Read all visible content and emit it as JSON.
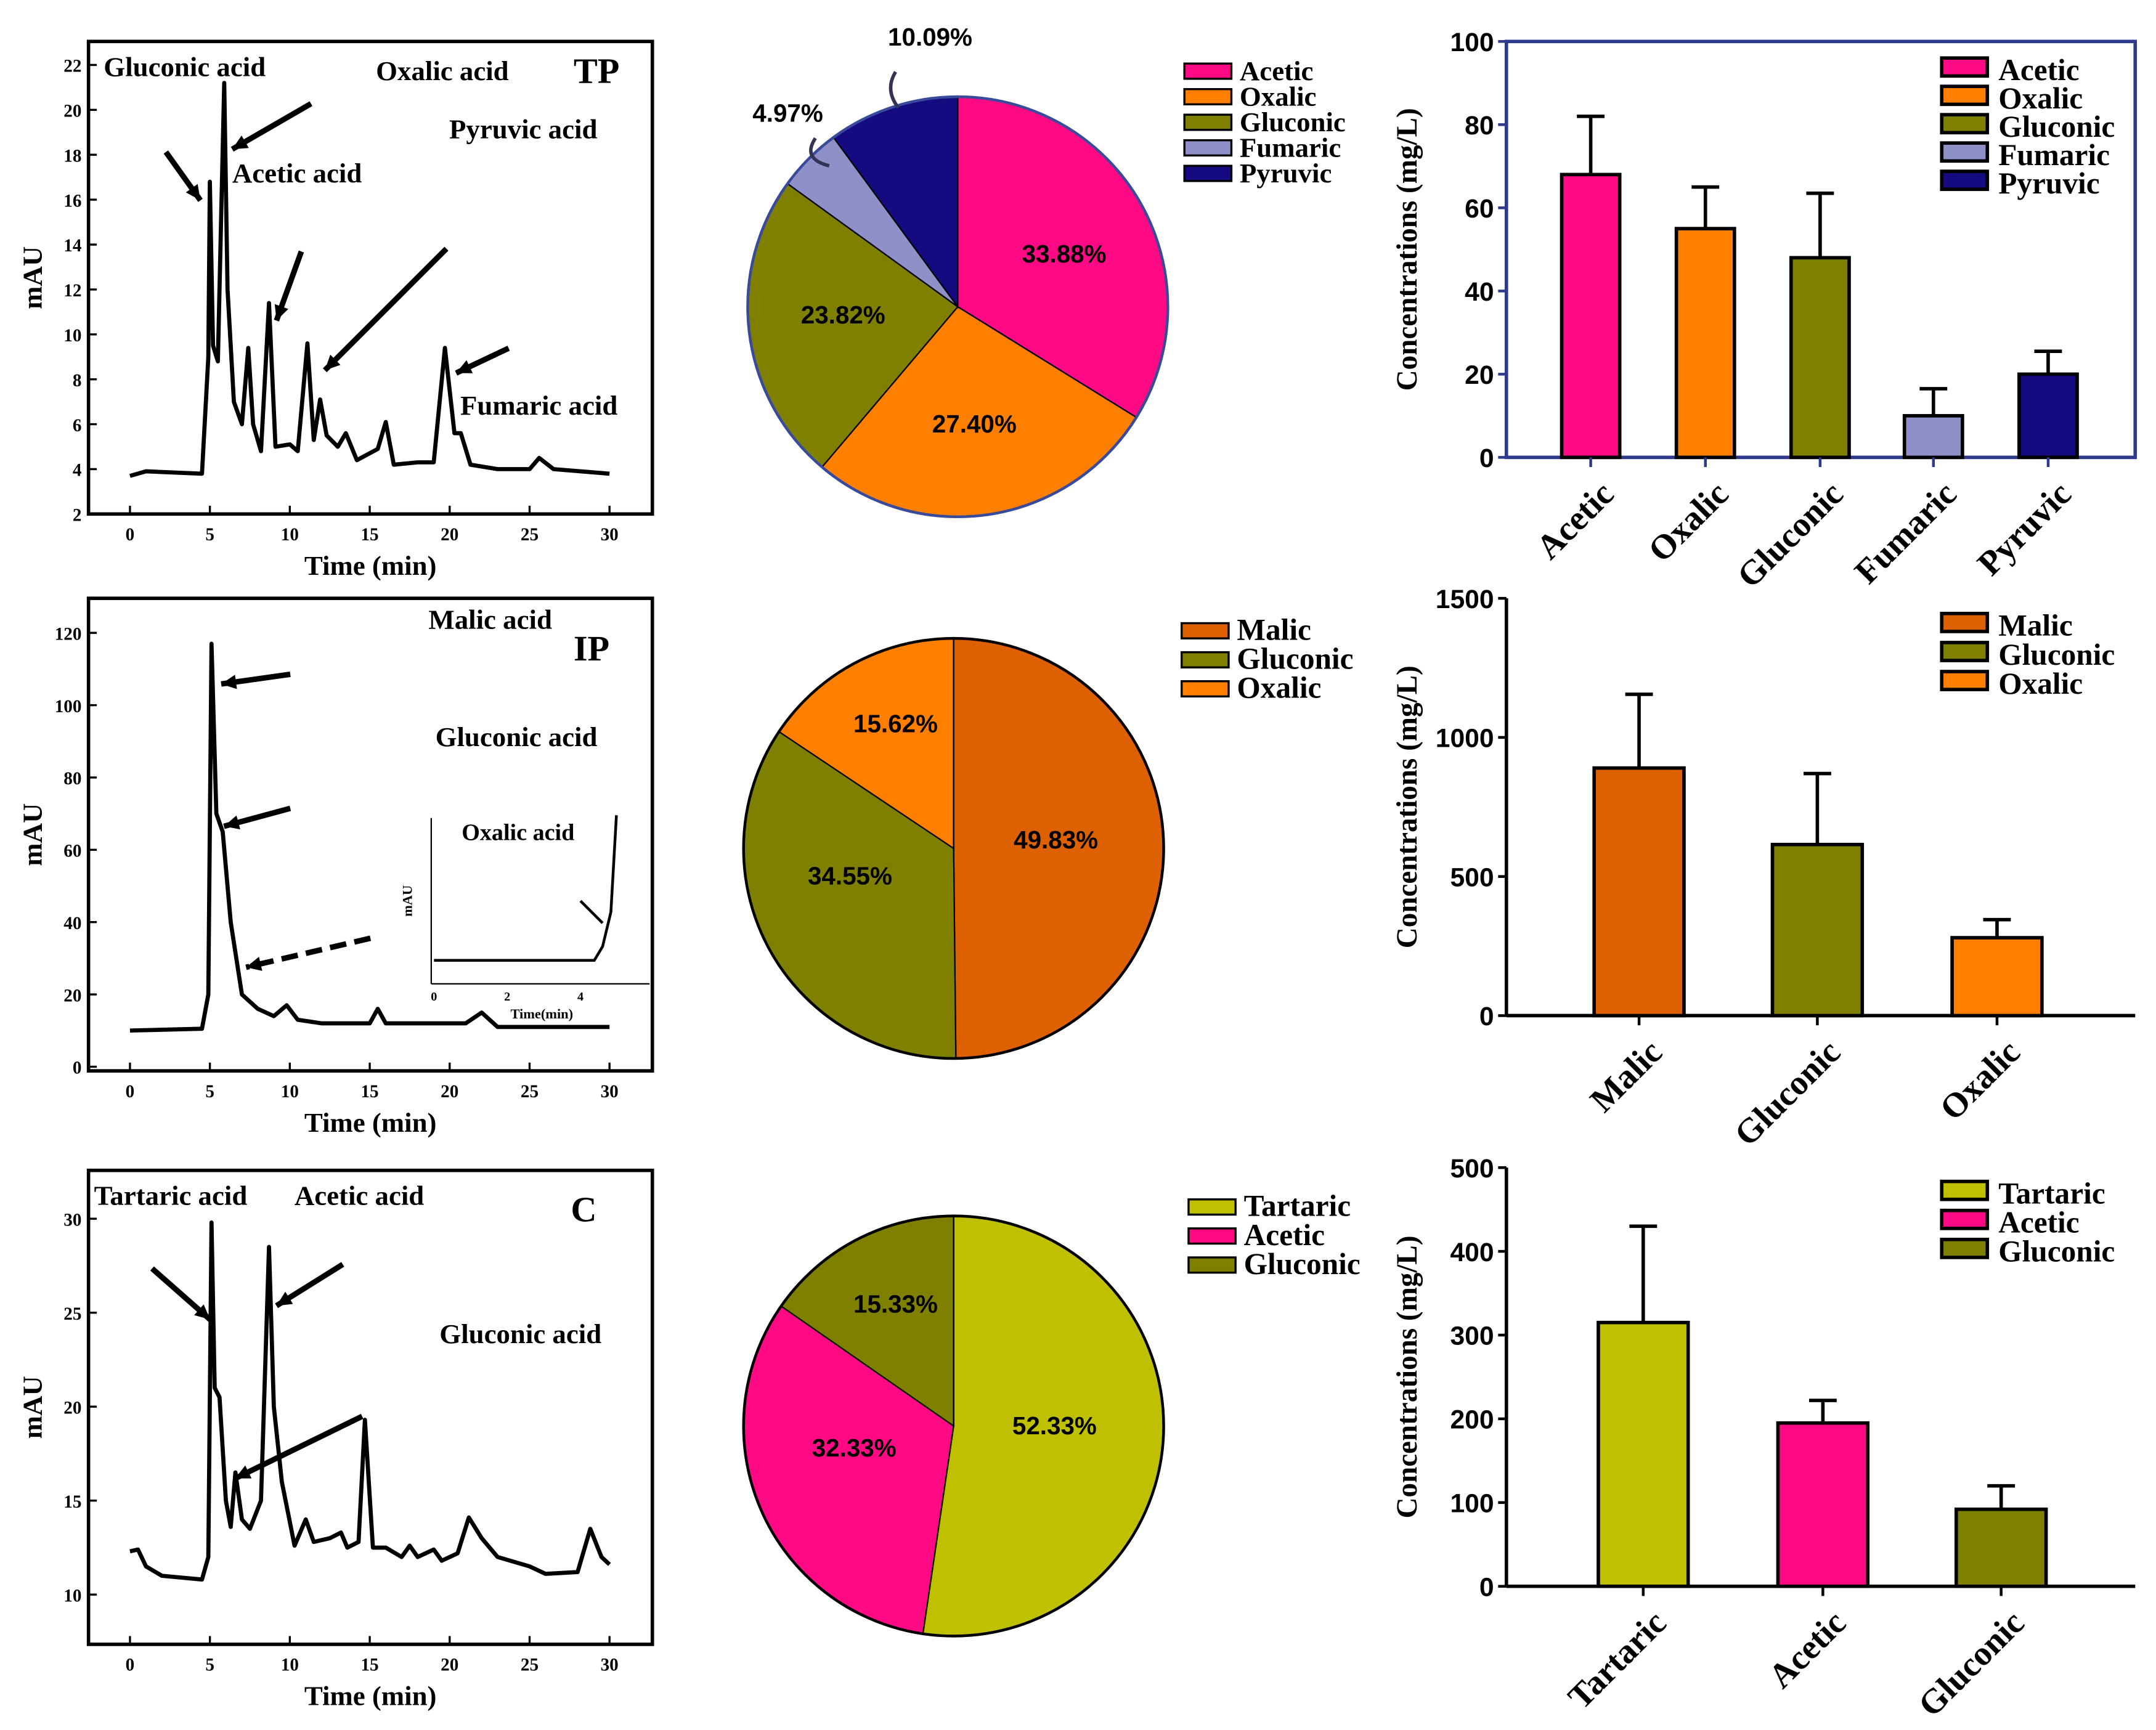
{
  "chart_data": [
    {
      "type": "line",
      "panel": "TP chromatogram",
      "tag": "TP",
      "xlabel": "Time (min)",
      "ylabel": "mAU",
      "xlim": [
        0,
        30
      ],
      "ylim": [
        2,
        22
      ],
      "xticks": [
        0,
        5,
        10,
        15,
        20,
        25,
        30
      ],
      "yticks": [
        2,
        4,
        6,
        8,
        10,
        12,
        14,
        16,
        18,
        20,
        22
      ],
      "annotations": [
        "Gluconic acid",
        "Oxalic acid",
        "Acetic acid",
        "Pyruvic acid",
        "Fumaric acid"
      ],
      "points": [
        [
          0,
          3.7
        ],
        [
          1,
          3.9
        ],
        [
          4.5,
          3.8
        ],
        [
          4.9,
          9
        ],
        [
          5.0,
          16.8
        ],
        [
          5.2,
          9.5
        ],
        [
          5.5,
          8.8
        ],
        [
          5.9,
          21.2
        ],
        [
          6.1,
          12
        ],
        [
          6.5,
          7
        ],
        [
          7,
          6
        ],
        [
          7.4,
          9.4
        ],
        [
          7.7,
          6
        ],
        [
          8.2,
          4.8
        ],
        [
          8.7,
          11.4
        ],
        [
          9.1,
          5
        ],
        [
          10,
          5.1
        ],
        [
          10.5,
          4.8
        ],
        [
          11.1,
          9.6
        ],
        [
          11.5,
          5.3
        ],
        [
          11.9,
          7.1
        ],
        [
          12.3,
          5.5
        ],
        [
          13,
          5
        ],
        [
          13.5,
          5.6
        ],
        [
          14.2,
          4.4
        ],
        [
          15.5,
          4.9
        ],
        [
          16,
          6.1
        ],
        [
          16.5,
          4.2
        ],
        [
          18,
          4.3
        ],
        [
          19,
          4.3
        ],
        [
          19.7,
          9.4
        ],
        [
          20.3,
          5.6
        ],
        [
          20.7,
          5.6
        ],
        [
          21.3,
          4.2
        ],
        [
          23,
          4
        ],
        [
          25,
          4
        ],
        [
          25.6,
          4.5
        ],
        [
          26.5,
          4
        ],
        [
          30,
          3.8
        ]
      ]
    },
    {
      "type": "pie",
      "panel": "TP composition",
      "labels": [
        "Acetic",
        "Oxalic",
        "Gluconic",
        "Fumaric",
        "Pyruvic"
      ],
      "values": [
        33.88,
        27.4,
        23.82,
        4.97,
        10.09
      ],
      "value_labels": [
        "33.88%",
        "27.40%",
        "23.82%",
        "4.97%",
        "10.09%"
      ],
      "colors": [
        "#ff0a84",
        "#ff7f00",
        "#808000",
        "#9090c8",
        "#150a80"
      ],
      "legend": "right"
    },
    {
      "type": "bar",
      "panel": "TP concentrations",
      "categories": [
        "Acetic",
        "Oxalic",
        "Gluconic",
        "Fumaric",
        "Pyruvic"
      ],
      "values": [
        68,
        55,
        48,
        10,
        20
      ],
      "errors": [
        14,
        10,
        15.5,
        6.5,
        5.5
      ],
      "colors": [
        "#ff0a84",
        "#ff7f00",
        "#808000",
        "#9090c8",
        "#150a80"
      ],
      "ylabel": "Concentrations (mg/L)",
      "ylim": [
        0,
        100
      ],
      "yticks": [
        0,
        20,
        40,
        60,
        80,
        100
      ],
      "legend": "top-right",
      "frame": true
    },
    {
      "type": "line",
      "panel": "IP chromatogram",
      "tag": "IP",
      "xlabel": "Time (min)",
      "ylabel": "mAU",
      "xlim": [
        0,
        30
      ],
      "ylim": [
        0,
        120
      ],
      "xticks": [
        0,
        5,
        10,
        15,
        20,
        25,
        30
      ],
      "yticks": [
        0,
        20,
        40,
        60,
        80,
        100,
        120
      ],
      "annotations": [
        "Malic acid",
        "Gluconic acid"
      ],
      "inset": {
        "title": "Oxalic acid",
        "xlabel": "Time(min)",
        "ylabel": "mAU",
        "xticks": [
          "0",
          "2",
          "4"
        ]
      },
      "points": [
        [
          0,
          10
        ],
        [
          4.5,
          10.5
        ],
        [
          4.9,
          20
        ],
        [
          5.1,
          117
        ],
        [
          5.4,
          70
        ],
        [
          5.8,
          65
        ],
        [
          6.3,
          40
        ],
        [
          7,
          20
        ],
        [
          8,
          16
        ],
        [
          9,
          14
        ],
        [
          9.8,
          17
        ],
        [
          10.5,
          13
        ],
        [
          12,
          12
        ],
        [
          14,
          12
        ],
        [
          15,
          12
        ],
        [
          15.5,
          16
        ],
        [
          16,
          12
        ],
        [
          21,
          12
        ],
        [
          22,
          15
        ],
        [
          23,
          11
        ],
        [
          30,
          11
        ]
      ]
    },
    {
      "type": "pie",
      "panel": "IP composition",
      "labels": [
        "Malic",
        "Gluconic",
        "Oxalic"
      ],
      "values": [
        49.83,
        34.55,
        15.62
      ],
      "value_labels": [
        "49.83%",
        "34.55%",
        "15.62%"
      ],
      "colors": [
        "#dd6100",
        "#808000",
        "#ff7f00"
      ],
      "legend": "right"
    },
    {
      "type": "bar",
      "panel": "IP concentrations",
      "categories": [
        "Malic",
        "Gluconic",
        "Oxalic"
      ],
      "values": [
        890,
        615,
        280
      ],
      "errors": [
        265,
        255,
        65
      ],
      "colors": [
        "#dd6100",
        "#808000",
        "#ff7f00"
      ],
      "ylabel": "Concentrations (mg/L)",
      "ylim": [
        0,
        1500
      ],
      "yticks": [
        0,
        500,
        1000,
        1500
      ],
      "legend": "top-right",
      "frame": false
    },
    {
      "type": "line",
      "panel": "C chromatogram",
      "tag": "C",
      "xlabel": "Time (min)",
      "ylabel": "mAU",
      "xlim": [
        0,
        30
      ],
      "ylim": [
        10,
        30
      ],
      "xticks": [
        0,
        5,
        10,
        15,
        20,
        25,
        30
      ],
      "yticks": [
        10,
        15,
        20,
        25,
        30
      ],
      "annotations": [
        "Tartaric acid",
        "Acetic acid",
        "Gluconic acid"
      ],
      "points": [
        [
          0,
          12.3
        ],
        [
          0.5,
          12.4
        ],
        [
          1,
          11.5
        ],
        [
          2,
          11
        ],
        [
          4.5,
          10.8
        ],
        [
          4.9,
          12
        ],
        [
          5.1,
          29.8
        ],
        [
          5.3,
          21
        ],
        [
          5.6,
          20.5
        ],
        [
          6,
          15
        ],
        [
          6.3,
          13.6
        ],
        [
          6.6,
          16.5
        ],
        [
          7,
          14
        ],
        [
          7.5,
          13.5
        ],
        [
          8.2,
          15
        ],
        [
          8.7,
          28.5
        ],
        [
          9,
          20
        ],
        [
          9.5,
          16
        ],
        [
          10.3,
          12.6
        ],
        [
          11,
          14
        ],
        [
          11.5,
          12.8
        ],
        [
          12.5,
          13
        ],
        [
          13.2,
          13.3
        ],
        [
          13.6,
          12.5
        ],
        [
          14.3,
          12.8
        ],
        [
          14.7,
          19.3
        ],
        [
          15.2,
          12.5
        ],
        [
          16,
          12.5
        ],
        [
          17,
          12
        ],
        [
          17.5,
          12.6
        ],
        [
          18,
          12
        ],
        [
          19,
          12.4
        ],
        [
          19.5,
          11.8
        ],
        [
          20.5,
          12.2
        ],
        [
          21.2,
          14.1
        ],
        [
          22,
          13
        ],
        [
          23,
          12
        ],
        [
          25,
          11.5
        ],
        [
          26,
          11.1
        ],
        [
          28,
          11.2
        ],
        [
          28.8,
          13.5
        ],
        [
          29.5,
          12
        ],
        [
          30,
          11.6
        ]
      ]
    },
    {
      "type": "pie",
      "panel": "C composition",
      "labels": [
        "Tartaric",
        "Acetic",
        "Gluconic"
      ],
      "values": [
        52.33,
        32.33,
        15.33
      ],
      "value_labels": [
        "52.33%",
        "32.33%",
        "15.33%"
      ],
      "colors": [
        "#bfc000",
        "#ff0a84",
        "#808000"
      ],
      "legend": "right"
    },
    {
      "type": "bar",
      "panel": "C concentrations",
      "categories": [
        "Tartaric",
        "Acetic",
        "Gluconic"
      ],
      "values": [
        315,
        195,
        92
      ],
      "errors": [
        115,
        27,
        28
      ],
      "colors": [
        "#bfc000",
        "#ff0a84",
        "#808000"
      ],
      "ylabel": "Concentrations (mg/L)",
      "ylim": [
        0,
        500
      ],
      "yticks": [
        0,
        100,
        200,
        300,
        400,
        500
      ],
      "legend": "top-right",
      "frame": false
    }
  ]
}
